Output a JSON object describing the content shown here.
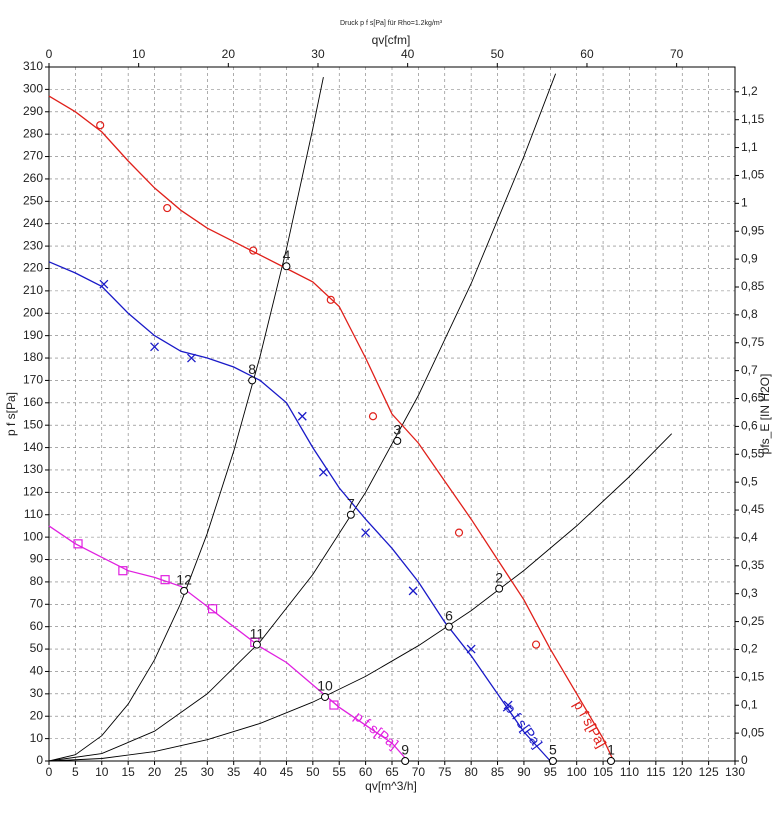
{
  "chart_data": {
    "type": "line",
    "title": "Druck p f s[Pa] für Rho=1.2kg/m³",
    "xlabel": "qv[m^3/h]",
    "x2label": "qv[cfm]",
    "ylabel": "p f s[Pa]",
    "y2label": "pfs_E [IN H2O]",
    "xlim": [
      0,
      130
    ],
    "xticks": [
      0,
      5,
      10,
      15,
      20,
      25,
      30,
      35,
      40,
      45,
      50,
      55,
      60,
      65,
      70,
      75,
      80,
      85,
      90,
      95,
      100,
      105,
      110,
      115,
      120,
      125,
      130
    ],
    "x2lim": [
      0,
      76.51
    ],
    "x2ticks": [
      0,
      10,
      20,
      30,
      40,
      50,
      60,
      70
    ],
    "ylim": [
      0,
      310
    ],
    "yticks": [
      0,
      10,
      20,
      30,
      40,
      50,
      60,
      70,
      80,
      90,
      100,
      110,
      120,
      130,
      140,
      150,
      160,
      170,
      180,
      190,
      200,
      210,
      220,
      230,
      240,
      250,
      260,
      270,
      280,
      290,
      300,
      310
    ],
    "y2lim": [
      0,
      1.2445
    ],
    "y2ticks": [
      0,
      {
        "value": 0.05,
        "label": "0,05"
      },
      {
        "value": 0.1,
        "label": "0,1"
      },
      {
        "value": 0.15,
        "label": "0,15"
      },
      {
        "value": 0.2,
        "label": "0,2"
      },
      {
        "value": 0.25,
        "label": "0,25"
      },
      {
        "value": 0.3,
        "label": "0,3"
      },
      {
        "value": 0.35,
        "label": "0,35"
      },
      {
        "value": 0.4,
        "label": "0,4"
      },
      {
        "value": 0.45,
        "label": "0,45"
      },
      {
        "value": 0.5,
        "label": "0,5"
      },
      {
        "value": 0.55,
        "label": "0,55"
      },
      {
        "value": 0.6,
        "label": "0,6"
      },
      {
        "value": 0.65,
        "label": "0,65"
      },
      {
        "value": 0.7,
        "label": "0,7"
      },
      {
        "value": 0.75,
        "label": "0,75"
      },
      {
        "value": 0.8,
        "label": "0,8"
      },
      {
        "value": 0.85,
        "label": "0,85"
      },
      {
        "value": 0.9,
        "label": "0,9"
      },
      {
        "value": 0.95,
        "label": "0,95"
      },
      1,
      {
        "value": 1.05,
        "label": "1,05"
      },
      {
        "value": 1.1,
        "label": "1,1"
      },
      {
        "value": 1.15,
        "label": "1,15"
      },
      {
        "value": 1.2,
        "label": "1,2"
      }
    ],
    "grid": true,
    "series": [
      {
        "name": "p f s[Pa]",
        "color": "#e0201a",
        "marker": "circle",
        "x": [
          0,
          5,
          10,
          15,
          20,
          25,
          30,
          35,
          40,
          45,
          50,
          55,
          60,
          65,
          70,
          75,
          80,
          85,
          90,
          95,
          100,
          105,
          107
        ],
        "values": [
          297,
          290,
          281,
          268,
          256,
          246,
          238,
          232,
          226,
          220,
          214,
          203,
          180,
          155,
          142,
          125,
          108,
          90,
          72,
          50,
          30,
          10,
          0
        ],
        "marker_x": [
          9.7,
          22.4,
          38.7,
          53.4,
          61.4,
          77.7,
          92.3
        ],
        "marker_values": [
          284,
          247,
          228,
          206,
          154,
          102,
          52
        ]
      },
      {
        "name": "p f s[Pa]",
        "color": "#1a1ac8",
        "marker": "cross",
        "x": [
          0,
          5,
          10,
          15,
          20,
          25,
          30,
          35,
          40,
          45,
          50,
          55,
          60,
          65,
          70,
          75,
          80,
          85,
          90,
          95
        ],
        "values": [
          223,
          218,
          212,
          200,
          190,
          183,
          180,
          176,
          170,
          160,
          140,
          122,
          108,
          95,
          80,
          62,
          47,
          30,
          13,
          0
        ],
        "marker_x": [
          10.4,
          20,
          27,
          48,
          52,
          60,
          69,
          80,
          87
        ],
        "marker_values": [
          213,
          185,
          180,
          154,
          129,
          102,
          76,
          50,
          25
        ]
      },
      {
        "name": "p f s[Pa]",
        "color": "#e020e0",
        "marker": "square",
        "x": [
          0,
          5,
          10,
          15,
          20,
          25,
          30,
          35,
          40,
          45,
          50,
          55,
          60,
          65,
          68
        ],
        "values": [
          105,
          97,
          91,
          85,
          82,
          78,
          69,
          60,
          51,
          44,
          34,
          24,
          16,
          8,
          0
        ],
        "marker_x": [
          5.5,
          14,
          22,
          31,
          39,
          54
        ],
        "marker_values": [
          97,
          85,
          81,
          68,
          53,
          25
        ]
      }
    ],
    "system_curves": [
      {
        "x": [
          0,
          5,
          10,
          15,
          20,
          25,
          30,
          35,
          40,
          45,
          50,
          52
        ],
        "values": [
          0,
          2.8,
          11.3,
          25.4,
          45.2,
          70.6,
          101.7,
          138.4,
          180.8,
          228.8,
          282.5,
          305.5
        ]
      },
      {
        "x": [
          0,
          10,
          20,
          30,
          40,
          50,
          60,
          70,
          80,
          90,
          96
        ],
        "values": [
          0,
          3.3,
          13.3,
          30,
          53.3,
          83.3,
          120,
          163.3,
          213.3,
          270,
          307
        ]
      },
      {
        "x": [
          0,
          10,
          20,
          30,
          40,
          50,
          60,
          70,
          80,
          90,
          100,
          110,
          118
        ],
        "values": [
          0,
          1.1,
          4.2,
          9.5,
          16.8,
          26.3,
          37.8,
          51.5,
          67.2,
          85.1,
          105,
          127.1,
          146.2
        ]
      }
    ],
    "points": [
      {
        "label": "1",
        "x": 106.5,
        "y": 0
      },
      {
        "label": "2",
        "x": 85.3,
        "y": 77
      },
      {
        "label": "3",
        "x": 66,
        "y": 143
      },
      {
        "label": "4",
        "x": 45,
        "y": 221
      },
      {
        "label": "5",
        "x": 95.5,
        "y": 0
      },
      {
        "label": "6",
        "x": 75.8,
        "y": 60
      },
      {
        "label": "7",
        "x": 57.2,
        "y": 110
      },
      {
        "label": "8",
        "x": 38.5,
        "y": 170
      },
      {
        "label": "9",
        "x": 67.5,
        "y": 0
      },
      {
        "label": "10",
        "x": 52.3,
        "y": 28.6
      },
      {
        "label": "11",
        "x": 39.4,
        "y": 52
      },
      {
        "label": "12",
        "x": 25.6,
        "y": 76
      }
    ]
  }
}
